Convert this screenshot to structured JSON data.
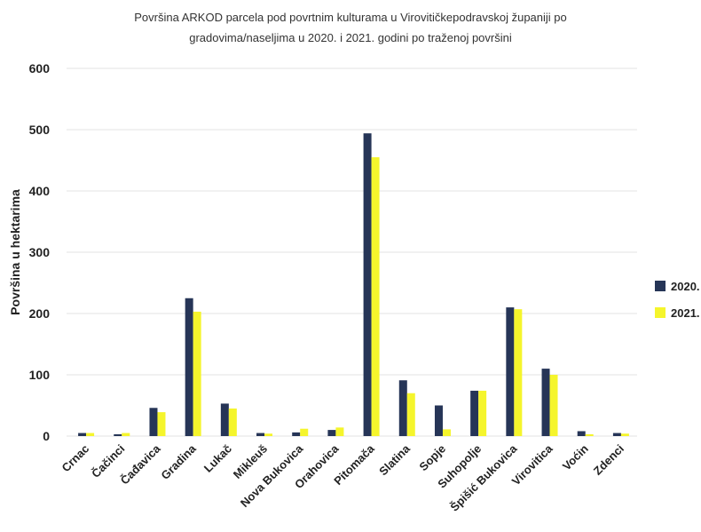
{
  "chart_data": {
    "type": "bar",
    "title_line1": "Površina ARKOD parcela pod povrtnim kulturama u Virovitičkepodravskoj županiji po",
    "title_line2": "gradovima/naseljima u 2020. i 2021. godini po traženoj površini",
    "xlabel": "",
    "ylabel": "Površina u hektarima",
    "ylim": [
      0,
      600
    ],
    "yticks": [
      0,
      100,
      200,
      300,
      400,
      500,
      600
    ],
    "grid": true,
    "legend_position": "right",
    "categories": [
      "Crnac",
      "Čačinci",
      "Čađavica",
      "Gradina",
      "Lukač",
      "Mikleuš",
      "Nova Bukovica",
      "Orahovica",
      "Pitomača",
      "Slatina",
      "Sopje",
      "Suhopolje",
      "Špišić Bukovica",
      "Virovitica",
      "Voćin",
      "Zdenci"
    ],
    "series": [
      {
        "name": "2020.",
        "color": "#263557",
        "values": [
          5,
          3,
          46,
          225,
          53,
          5,
          6,
          10,
          494,
          91,
          50,
          74,
          210,
          110,
          8,
          5
        ]
      },
      {
        "name": "2021.",
        "color": "#f5f52c",
        "values": [
          5,
          5,
          39,
          203,
          45,
          4,
          12,
          14,
          455,
          70,
          11,
          74,
          207,
          100,
          3,
          4
        ]
      }
    ]
  }
}
